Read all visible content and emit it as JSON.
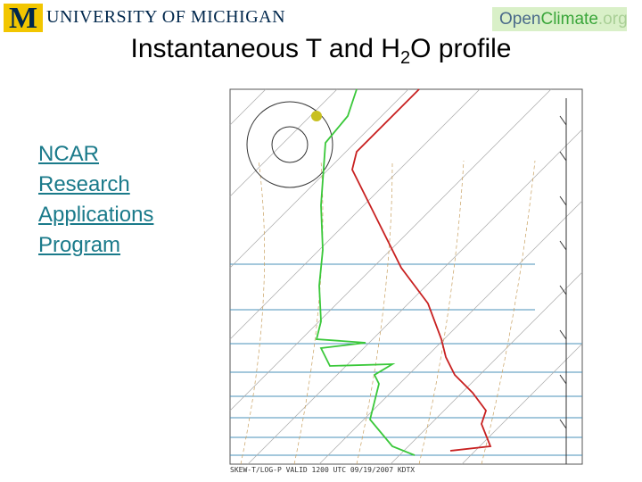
{
  "header": {
    "university": "UNIVERSITY OF MICHIGAN",
    "logo_letter": "M",
    "partner_logo": [
      "Open",
      "Climate",
      ".org"
    ]
  },
  "slide": {
    "title_parts": [
      "Instantaneous T and H",
      "2",
      "O profile"
    ],
    "link": "NCAR Research Applications Program"
  },
  "figure": {
    "caption": "SKEW-T/LOG-P VALID 1200 UTC 09/19/2007 KDTX"
  }
}
